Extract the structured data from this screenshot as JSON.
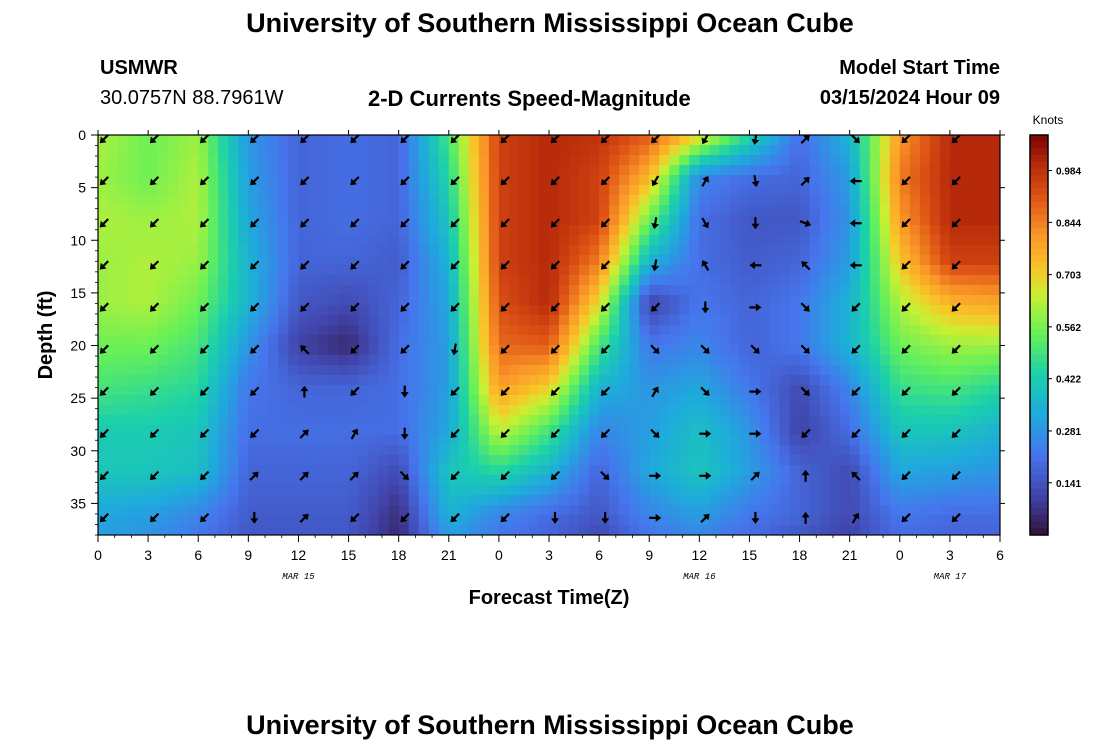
{
  "header": {
    "title": "University of Southern Mississippi Ocean Cube",
    "station_name": "USMWR",
    "coordinates": "30.0757N  88.7961W",
    "plot_title": "2-D Currents Speed-Magnitude",
    "model_label": "Model Start Time",
    "model_time": "03/15/2024 Hour 09"
  },
  "footer": {
    "title": "University of Southern Mississippi Ocean Cube"
  },
  "chart_data": {
    "type": "heatmap",
    "title": "2-D Currents Speed-Magnitude",
    "xlabel": "Forecast Time(Z)",
    "ylabel": "Depth (ft)",
    "x_ticks": [
      "0",
      "3",
      "6",
      "9",
      "12",
      "15",
      "18",
      "21",
      "0",
      "3",
      "6",
      "9",
      "12",
      "15",
      "18",
      "21",
      "0",
      "3",
      "6"
    ],
    "x_range": [
      0,
      54
    ],
    "date_labels": [
      {
        "x": 12,
        "text": "MAR 15"
      },
      {
        "x": 36,
        "text": "MAR 16"
      },
      {
        "x": 51,
        "text": "MAR 17"
      }
    ],
    "y_ticks": [
      0,
      5,
      10,
      15,
      20,
      25,
      30,
      35
    ],
    "y_range": [
      0,
      38
    ],
    "colorbar": {
      "unit": "Knots",
      "range": [
        0.0,
        1.08
      ],
      "ticks": [
        0.141,
        0.281,
        0.422,
        0.562,
        0.703,
        0.844,
        0.984
      ],
      "tick_labels": [
        "0.141",
        "0.281",
        "0.422",
        "0.562",
        "0.703",
        "0.844",
        "0.984"
      ]
    },
    "speed_grid": {
      "x": [
        0,
        3,
        6,
        9,
        12,
        15,
        18,
        21,
        24,
        27,
        30,
        33,
        36,
        39,
        42,
        45,
        48,
        51,
        54
      ],
      "depth": [
        0,
        4,
        8,
        12,
        16,
        20,
        24,
        28,
        32,
        36,
        38
      ],
      "values": [
        [
          0.62,
          0.55,
          0.6,
          0.28,
          0.18,
          0.2,
          0.18,
          0.5,
          0.95,
          1.0,
          0.98,
          0.9,
          0.7,
          0.45,
          0.2,
          0.35,
          0.8,
          1.0,
          1.0
        ],
        [
          0.6,
          0.55,
          0.62,
          0.3,
          0.18,
          0.2,
          0.18,
          0.45,
          0.95,
          1.0,
          0.95,
          0.75,
          0.25,
          0.2,
          0.18,
          0.3,
          0.85,
          1.0,
          1.0
        ],
        [
          0.62,
          0.6,
          0.62,
          0.32,
          0.18,
          0.2,
          0.18,
          0.4,
          0.95,
          1.0,
          0.95,
          0.55,
          0.2,
          0.15,
          0.15,
          0.28,
          0.8,
          1.0,
          1.0
        ],
        [
          0.6,
          0.62,
          0.6,
          0.35,
          0.18,
          0.18,
          0.16,
          0.35,
          0.95,
          1.0,
          0.85,
          0.35,
          0.2,
          0.16,
          0.18,
          0.3,
          0.72,
          0.95,
          0.95
        ],
        [
          0.6,
          0.62,
          0.55,
          0.35,
          0.15,
          0.12,
          0.18,
          0.32,
          0.92,
          1.0,
          0.68,
          0.1,
          0.22,
          0.18,
          0.22,
          0.35,
          0.62,
          0.75,
          0.78
        ],
        [
          0.55,
          0.55,
          0.5,
          0.28,
          0.1,
          0.05,
          0.2,
          0.3,
          0.88,
          0.9,
          0.5,
          0.22,
          0.25,
          0.18,
          0.22,
          0.35,
          0.55,
          0.6,
          0.6
        ],
        [
          0.5,
          0.48,
          0.45,
          0.22,
          0.18,
          0.18,
          0.2,
          0.3,
          0.8,
          0.7,
          0.35,
          0.28,
          0.32,
          0.22,
          0.12,
          0.25,
          0.48,
          0.5,
          0.45
        ],
        [
          0.42,
          0.42,
          0.4,
          0.2,
          0.2,
          0.2,
          0.2,
          0.32,
          0.65,
          0.5,
          0.25,
          0.3,
          0.38,
          0.28,
          0.1,
          0.2,
          0.4,
          0.4,
          0.35
        ],
        [
          0.4,
          0.4,
          0.38,
          0.18,
          0.18,
          0.18,
          0.12,
          0.4,
          0.45,
          0.35,
          0.18,
          0.32,
          0.4,
          0.3,
          0.18,
          0.12,
          0.32,
          0.3,
          0.28
        ],
        [
          0.32,
          0.3,
          0.25,
          0.16,
          0.16,
          0.16,
          0.06,
          0.35,
          0.25,
          0.2,
          0.15,
          0.25,
          0.3,
          0.22,
          0.18,
          0.12,
          0.22,
          0.2,
          0.2
        ],
        [
          0.3,
          0.28,
          0.22,
          0.15,
          0.15,
          0.15,
          0.05,
          0.3,
          0.22,
          0.18,
          0.12,
          0.22,
          0.25,
          0.2,
          0.15,
          0.1,
          0.2,
          0.18,
          0.18
        ]
      ]
    },
    "vectors": {
      "x": [
        0,
        3,
        6,
        9,
        12,
        15,
        18,
        21,
        24,
        27,
        30,
        33,
        36,
        39,
        42,
        45,
        48,
        51
      ],
      "depth": [
        0,
        4,
        8,
        12,
        16,
        20,
        24,
        28,
        32,
        36
      ],
      "direction_deg": [
        [
          135,
          135,
          135,
          135,
          135,
          135,
          135,
          135,
          135,
          135,
          135,
          135,
          120,
          100,
          315,
          45,
          135,
          135
        ],
        [
          135,
          135,
          135,
          135,
          135,
          135,
          135,
          135,
          135,
          135,
          135,
          120,
          300,
          80,
          315,
          180,
          135,
          135
        ],
        [
          135,
          135,
          135,
          135,
          135,
          135,
          135,
          135,
          135,
          135,
          135,
          100,
          60,
          90,
          20,
          180,
          135,
          135
        ],
        [
          135,
          135,
          135,
          135,
          135,
          135,
          135,
          135,
          135,
          135,
          135,
          100,
          240,
          180,
          225,
          180,
          135,
          135
        ],
        [
          135,
          135,
          135,
          135,
          135,
          135,
          135,
          135,
          135,
          135,
          135,
          135,
          90,
          0,
          45,
          135,
          135,
          135
        ],
        [
          135,
          135,
          135,
          135,
          225,
          135,
          135,
          100,
          135,
          135,
          135,
          45,
          45,
          45,
          45,
          135,
          135,
          135
        ],
        [
          135,
          135,
          135,
          135,
          270,
          135,
          90,
          135,
          135,
          135,
          135,
          300,
          45,
          0,
          45,
          135,
          135,
          135
        ],
        [
          135,
          135,
          135,
          135,
          315,
          300,
          90,
          135,
          135,
          135,
          135,
          45,
          0,
          0,
          135,
          135,
          135,
          135
        ],
        [
          135,
          135,
          135,
          315,
          315,
          315,
          45,
          135,
          135,
          135,
          45,
          0,
          0,
          315,
          270,
          225,
          135,
          135
        ],
        [
          135,
          135,
          135,
          90,
          315,
          135,
          135,
          135,
          135,
          90,
          90,
          0,
          315,
          90,
          270,
          300,
          135,
          135
        ]
      ]
    }
  }
}
